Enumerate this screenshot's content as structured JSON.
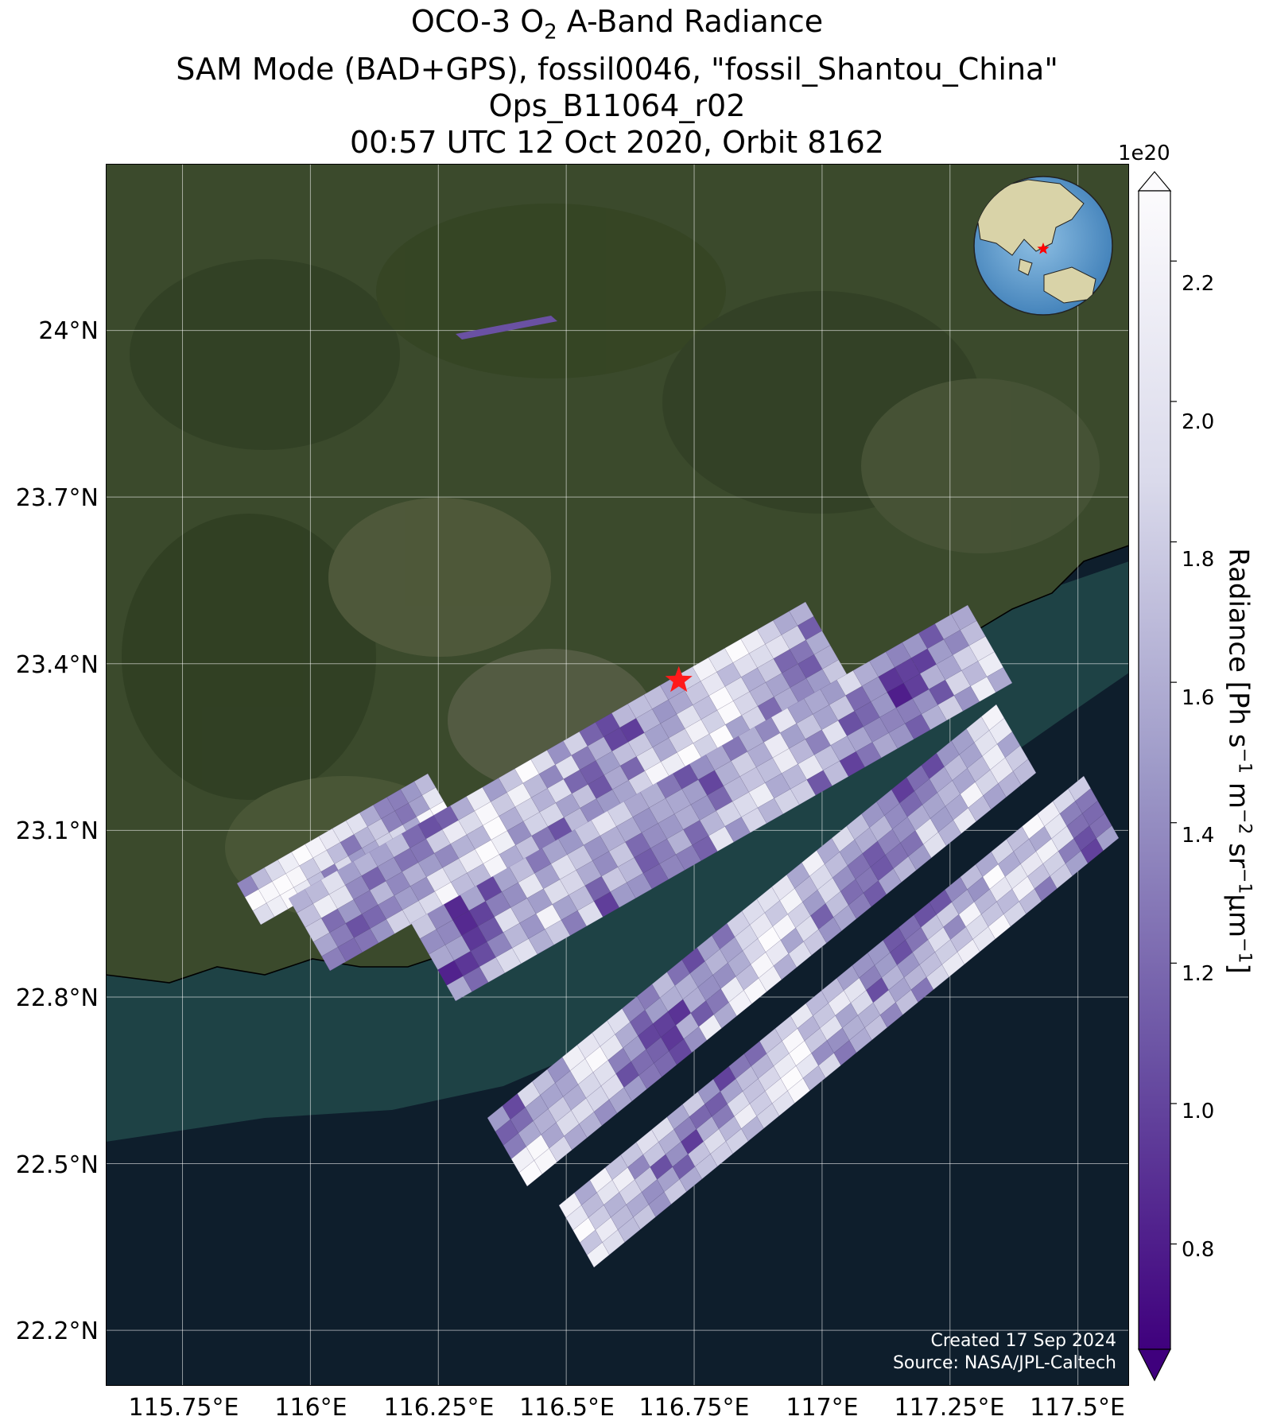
{
  "title": {
    "line1_prefix": "OCO-3 O",
    "line1_sub": "2",
    "line1_suffix": " A-Band Radiance",
    "line2": "SAM Mode (BAD+GPS), fossil0046, \"fossil_Shantou_China\"",
    "line3": "Ops_B11064_r02",
    "line4": "00:57 UTC 12 Oct 2020, Orbit 8162"
  },
  "map": {
    "lat_labels": [
      "24°N",
      "23.7°N",
      "23.4°N",
      "23.1°N",
      "22.8°N",
      "22.5°N",
      "22.2°N"
    ],
    "lon_labels": [
      "115.75°E",
      "116°E",
      "116.25°E",
      "116.5°E",
      "116.75°E",
      "117°E",
      "117.25°E",
      "117.5°E"
    ],
    "extent": {
      "lon": [
        115.6,
        117.6
      ],
      "lat": [
        22.1,
        24.3
      ]
    },
    "target_marker": {
      "lon": 116.72,
      "lat": 23.37,
      "symbol": "star",
      "color": "#ff1a1a"
    },
    "colors": {
      "sea": "#0e1e2c",
      "land": "#3a4a2a",
      "coast_water": "#2c5a58"
    },
    "inset_globe": {
      "center": "Asia",
      "marker_color": "#ff0000"
    },
    "credits": {
      "created": "Created 17 Sep 2024",
      "source": "Source: NASA/JPL-Caltech"
    }
  },
  "colorbar": {
    "label_prefix": "Radiance [Ph s",
    "label_text": "Radiance [Ph s⁻¹ m⁻² sr⁻¹μm⁻¹]",
    "exponent": "1e20",
    "ticks": [
      "2.2",
      "2.0",
      "1.8",
      "1.6",
      "1.4",
      "1.2",
      "1.0",
      "0.8"
    ],
    "tick_values": [
      2.2,
      2.0,
      1.8,
      1.6,
      1.4,
      1.2,
      1.0,
      0.8
    ],
    "range": [
      0.65,
      2.3
    ],
    "extend": "both",
    "colormap": "Purples_r",
    "colormap_stops": [
      "#3f007d",
      "#6a51a3",
      "#9e9ac8",
      "#dadaeb",
      "#fcfbfd"
    ]
  }
}
